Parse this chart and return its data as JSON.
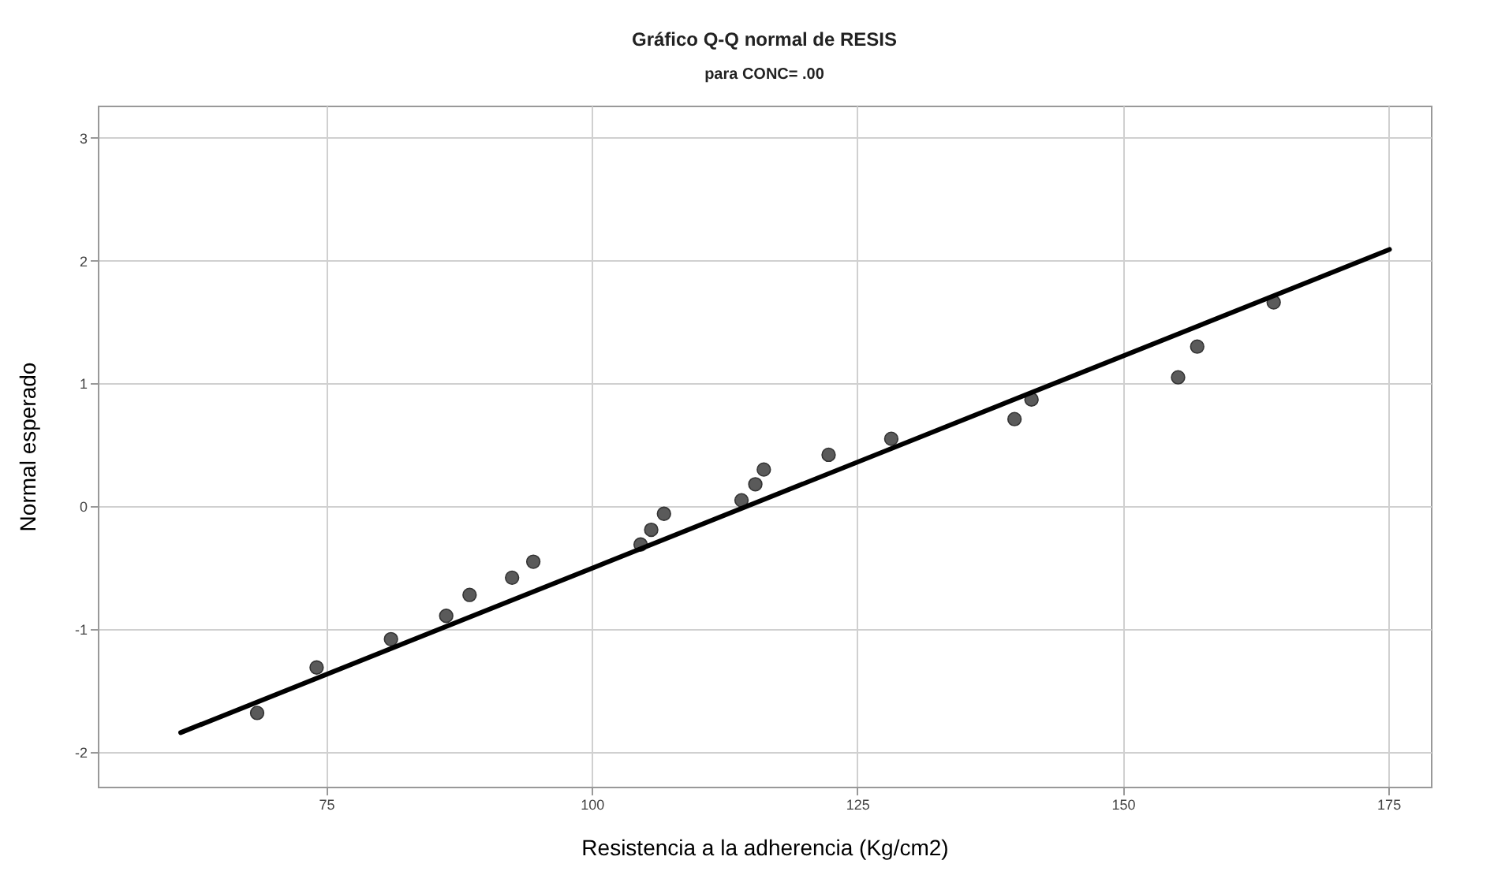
{
  "chart_data": {
    "type": "scatter",
    "title": "Gráfico Q-Q normal de RESIS",
    "subtitle": "para CONC= .00",
    "xlabel": "Resistencia a la adherencia (Kg/cm2)",
    "ylabel": "Normal esperado",
    "xlim": [
      53.5,
      179
    ],
    "xticks": [
      75,
      100,
      125,
      150,
      175
    ],
    "ylim": [
      -2.28,
      3.26
    ],
    "yticks": [
      -2,
      -1,
      0,
      1,
      2,
      3
    ],
    "grid": true,
    "marker": "circle",
    "x": [
      68.5,
      74.1,
      81.1,
      86.3,
      88.5,
      92.5,
      94.5,
      104.6,
      105.6,
      106.8,
      114.1,
      115.4,
      116.2,
      122.3,
      128.2,
      139.8,
      141.4,
      155.2,
      157.0,
      164.2
    ],
    "series": [
      {
        "color": "#5a5a5a",
        "values": [
          -1.68,
          -1.31,
          -1.08,
          -0.89,
          -0.72,
          -0.58,
          -0.45,
          -0.31,
          -0.19,
          -0.06,
          0.05,
          0.18,
          0.3,
          0.42,
          0.55,
          0.71,
          0.87,
          1.05,
          1.3,
          1.66
        ]
      },
      {
        "type": "line",
        "color": "#000000",
        "x": [
          61.3,
          175.1
        ],
        "values": [
          -1.84,
          2.09
        ],
        "line_style": "solid",
        "marker": "none"
      }
    ]
  }
}
